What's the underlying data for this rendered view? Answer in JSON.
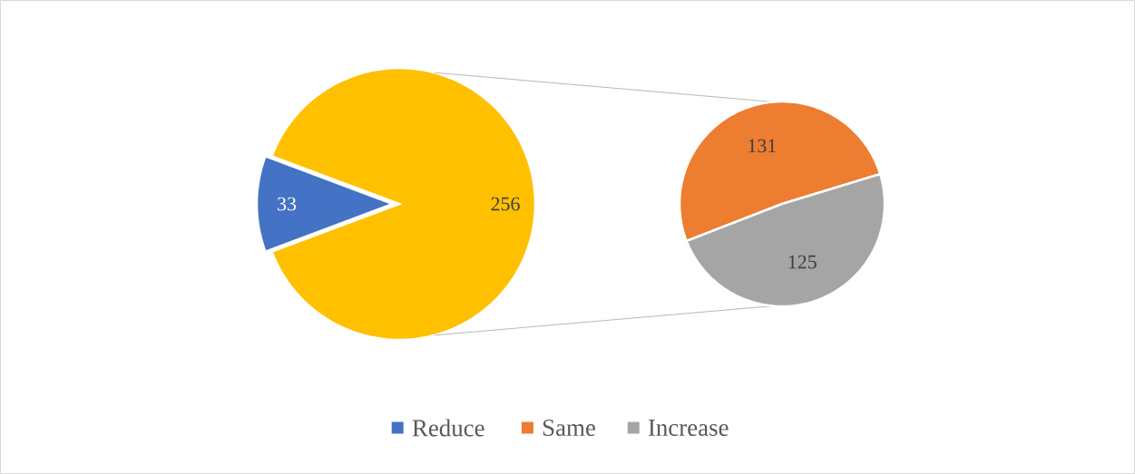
{
  "chart_data": [
    {
      "type": "pie",
      "categories": [
        "Reduce",
        null
      ],
      "values": [
        33,
        256
      ],
      "colors": [
        "#4472c4",
        "#ffc000"
      ],
      "data_labels": true,
      "legend": "bottom"
    },
    {
      "type": "pie",
      "categories": [
        "Same",
        "Increase"
      ],
      "values": [
        131,
        125
      ],
      "colors": [
        "#ed7d31",
        "#a5a5a5"
      ],
      "data_labels": true,
      "legend": "bottom"
    }
  ]
}
